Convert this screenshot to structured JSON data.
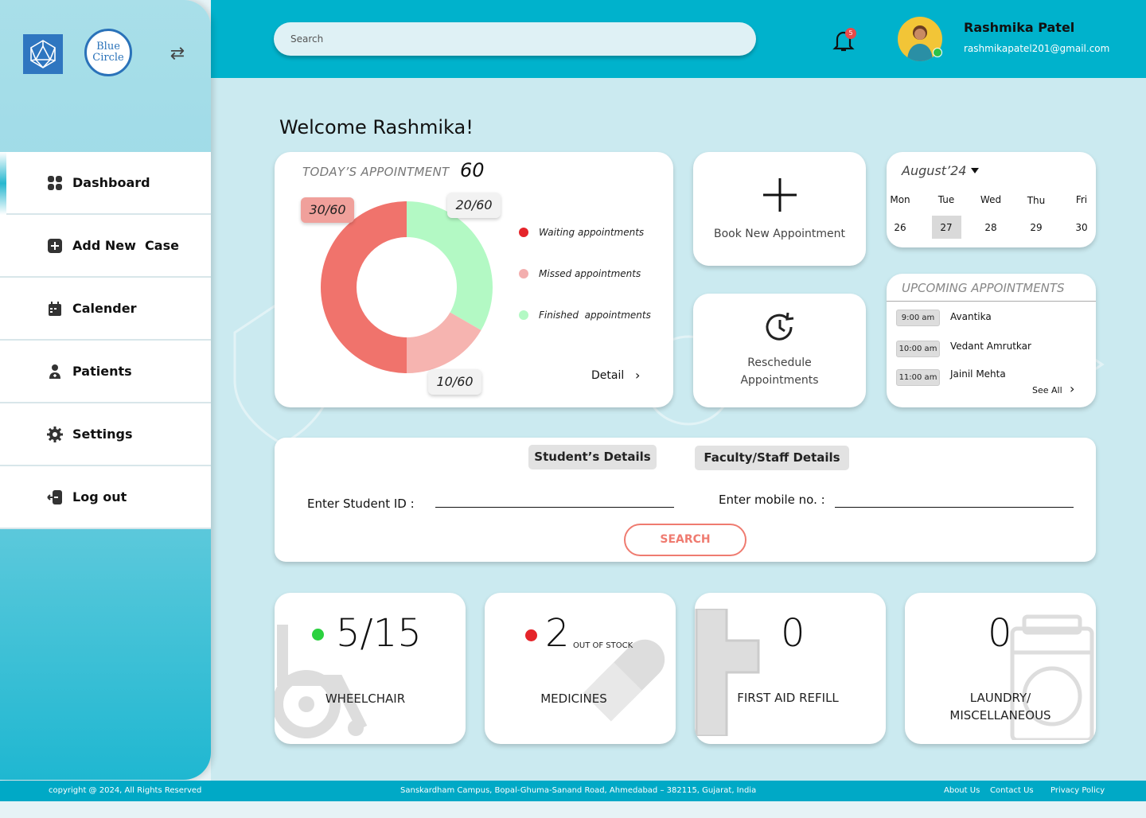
{
  "brand": {
    "logo2_line1": "Blue",
    "logo2_line2": "Circle"
  },
  "search": {
    "placeholder": "Search"
  },
  "notifications": {
    "count": "5"
  },
  "user": {
    "name": "Rashmika Patel",
    "email": "rashmikapatel201@gmail.com"
  },
  "sidebar": {
    "items": [
      {
        "label": "Dashboard",
        "icon": "grid-icon"
      },
      {
        "label": "Add New  Case",
        "icon": "plus-square-icon"
      },
      {
        "label": "Calender",
        "icon": "calendar-icon"
      },
      {
        "label": "Patients",
        "icon": "patient-icon"
      },
      {
        "label": "Settings",
        "icon": "gear-icon"
      },
      {
        "label": "Log out",
        "icon": "logout-icon"
      }
    ]
  },
  "welcome": "Welcome Rashmika!",
  "appointments": {
    "title": "TODAY’S APPOINTMENT",
    "total": "60",
    "tags": {
      "waiting": "30/60",
      "finished": "20/60",
      "missed": "10/60"
    },
    "legend": [
      "Waiting appointments",
      "Missed appointments",
      "Finished  appointments"
    ],
    "detail": "Detail"
  },
  "chart_data": {
    "type": "pie",
    "categories": [
      "Waiting appointments",
      "Missed appointments",
      "Finished  appointments"
    ],
    "values": [
      30,
      10,
      20
    ],
    "colors": [
      "#f0736c",
      "#f6b4b0",
      "#b3f9c4"
    ],
    "title": "TODAY’S APPOINTMENT"
  },
  "actions": {
    "book": "Book New Appointment",
    "reschedule_l1": "Reschedule",
    "reschedule_l2": "Appointments"
  },
  "calendar": {
    "month": "August’24",
    "days": [
      {
        "name": "Mon",
        "date": "26"
      },
      {
        "name": "Tue",
        "date": "27"
      },
      {
        "name": "Wed",
        "date": "28"
      },
      {
        "name": "Thu",
        "date": "29"
      },
      {
        "name": "Fri",
        "date": "30"
      }
    ],
    "selected": "27"
  },
  "upcoming": {
    "title": "UPCOMING APPOINTMENTS",
    "items": [
      {
        "time": "9:00 am",
        "name": "Avantika"
      },
      {
        "time": "10:00 am",
        "name": "Vedant Amrutkar"
      },
      {
        "time": "11:00 am",
        "name": "Jainil Mehta"
      }
    ],
    "see_all": "See All"
  },
  "details": {
    "student_tab": "Student’s Details",
    "faculty_tab": "Faculty/Staff Details",
    "student_label": "Enter Student ID :",
    "mobile_label": "Enter mobile no. :",
    "search_btn": "SEARCH"
  },
  "stats": {
    "wheelchair": {
      "value": "5/15",
      "label": "WHEELCHAIR",
      "status": "#2bd13f"
    },
    "medicines": {
      "value": "2",
      "note": "OUT OF STOCK",
      "label": "MEDICINES",
      "status": "#e5242a"
    },
    "firstaid": {
      "value": "0",
      "label": "FIRST AID REFILL"
    },
    "laundry": {
      "value": "0",
      "label_l1": "LAUNDRY/",
      "label_l2": "MISCELLANEOUS"
    }
  },
  "footer": {
    "copyright": "copyright @ 2024, All Rights Reserved",
    "address": "Sanskardham Campus, Bopal-Ghuma-Sanand Road, Ahmedabad – 382115, Gujarat, India",
    "about": "About Us",
    "contact": "Contact Us",
    "privacy": "Privacy Policy"
  }
}
